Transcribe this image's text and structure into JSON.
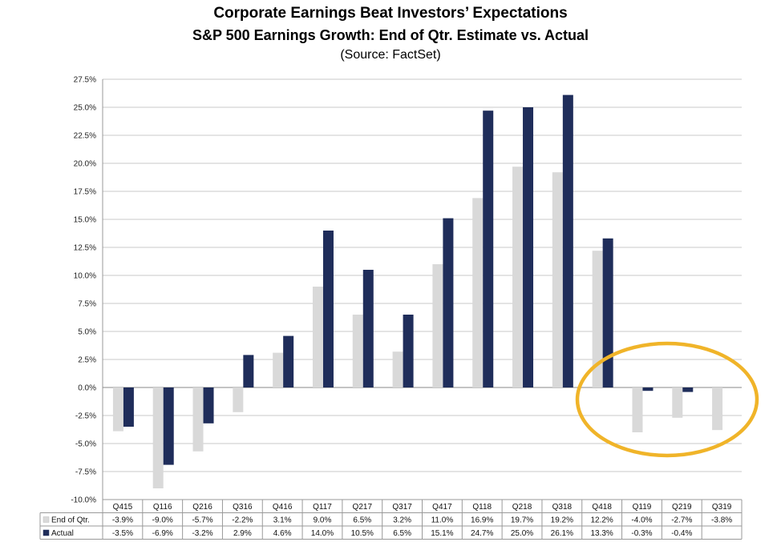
{
  "chart_data": {
    "type": "bar",
    "title": "Corporate Earnings Beat Investors’ Expectations",
    "subtitle": "S&P 500 Earnings Growth: End of Qtr. Estimate vs. Actual",
    "source": "(Source: FactSet)",
    "categories": [
      "Q415",
      "Q116",
      "Q216",
      "Q316",
      "Q416",
      "Q117",
      "Q217",
      "Q317",
      "Q417",
      "Q118",
      "Q218",
      "Q318",
      "Q418",
      "Q119",
      "Q219",
      "Q319"
    ],
    "ylim": [
      -10,
      27.5
    ],
    "yticks": [
      "27.5%",
      "25.0%",
      "22.5%",
      "20.0%",
      "17.5%",
      "15.0%",
      "12.5%",
      "10.0%",
      "7.5%",
      "5.0%",
      "2.5%",
      "0.0%",
      "-2.5%",
      "-5.0%",
      "-7.5%",
      "-10.0%"
    ],
    "grid": true,
    "series": [
      {
        "name": "End of Qtr.",
        "color": "#d9d9d9",
        "values": [
          -3.9,
          -9.0,
          -5.7,
          -2.2,
          3.1,
          9.0,
          6.5,
          3.2,
          11.0,
          16.9,
          19.7,
          19.2,
          12.2,
          -4.0,
          -2.7,
          -3.8
        ],
        "labels": [
          "-3.9%",
          "-9.0%",
          "-5.7%",
          "-2.2%",
          "3.1%",
          "9.0%",
          "6.5%",
          "3.2%",
          "11.0%",
          "16.9%",
          "19.7%",
          "19.2%",
          "12.2%",
          "-4.0%",
          "-2.7%",
          "-3.8%"
        ]
      },
      {
        "name": "Actual",
        "color": "#1f2d5a",
        "values": [
          -3.5,
          -6.9,
          -3.2,
          2.9,
          4.6,
          14.0,
          10.5,
          6.5,
          15.1,
          24.7,
          25.0,
          26.1,
          13.3,
          -0.3,
          -0.4,
          null
        ],
        "labels": [
          "-3.5%",
          "-6.9%",
          "-3.2%",
          "2.9%",
          "4.6%",
          "14.0%",
          "10.5%",
          "6.5%",
          "15.1%",
          "24.7%",
          "25.0%",
          "26.1%",
          "13.3%",
          "-0.3%",
          "-0.4%",
          ""
        ]
      }
    ],
    "highlight_color": "#f0b429"
  }
}
